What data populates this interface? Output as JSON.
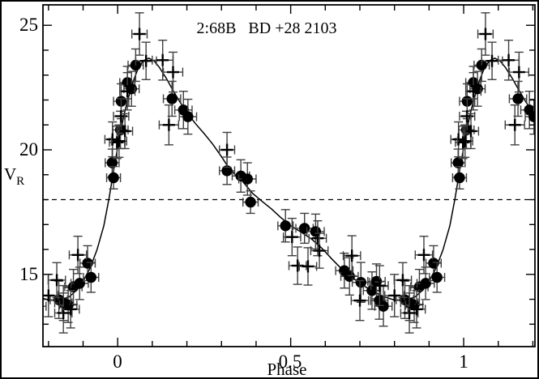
{
  "figure": {
    "title": "2:68B   BD +28 2103",
    "xlabel": "Phase",
    "ylabel_main": "V",
    "ylabel_sub": "R"
  },
  "colors": {
    "ink": "#000000",
    "errorbar": "#3f3f3f",
    "background": "#ffffff",
    "frame": "#000000"
  },
  "chart_data": {
    "type": "scatter",
    "title": "2:68B   BD +28 2103",
    "xlabel": "Phase",
    "ylabel": "V_R",
    "xlim": [
      -0.216,
      1.206
    ],
    "ylim": [
      12.1,
      25.82
    ],
    "grid": false,
    "legend": "none",
    "x_major_ticks": [
      0,
      0.5,
      1
    ],
    "x_major_labels": [
      "0",
      "0.5",
      "1"
    ],
    "x_minor_from": -0.2,
    "x_minor_to": 1.2,
    "x_minor_step": 0.1,
    "y_major_ticks": [
      15,
      20,
      25
    ],
    "y_major_labels": [
      "15",
      "20",
      "25"
    ],
    "y_minor_from": 13,
    "y_minor_to": 25,
    "y_minor_step": 1,
    "dashed_line_y": 18.0,
    "phase_fold_shifts": [
      -1,
      0,
      1
    ],
    "series": [
      {
        "name": "filled-circle-observations",
        "marker": "circle",
        "point_format": [
          "phase",
          "V_R",
          "xerr",
          "yerr"
        ],
        "points": [
          [
            0.008,
            20.8,
            0.022,
            0.75
          ],
          [
            0.01,
            21.95,
            0.022,
            0.7
          ],
          [
            0.028,
            22.7,
            0.022,
            0.65
          ],
          [
            0.04,
            22.45,
            0.022,
            0.7
          ],
          [
            0.052,
            23.4,
            0.022,
            0.65
          ],
          [
            0.157,
            22.05,
            0.025,
            0.7
          ],
          [
            0.19,
            21.6,
            0.025,
            0.75
          ],
          [
            0.203,
            21.33,
            0.025,
            0.7
          ],
          [
            0.316,
            19.16,
            0.022,
            0.55
          ],
          [
            0.356,
            18.95,
            0.025,
            0.65
          ],
          [
            0.375,
            18.83,
            0.025,
            0.65
          ],
          [
            0.384,
            17.9,
            0.022,
            0.45
          ],
          [
            0.485,
            16.95,
            0.022,
            0.65
          ],
          [
            0.54,
            16.85,
            0.025,
            0.6
          ],
          [
            0.572,
            16.72,
            0.025,
            0.7
          ],
          [
            0.655,
            15.15,
            0.025,
            0.7
          ],
          [
            0.67,
            14.92,
            0.025,
            0.75
          ],
          [
            0.703,
            14.68,
            0.025,
            0.8
          ],
          [
            0.735,
            14.35,
            0.025,
            0.75
          ],
          [
            0.748,
            14.72,
            0.025,
            0.7
          ],
          [
            0.756,
            13.95,
            0.025,
            0.75
          ],
          [
            0.768,
            13.72,
            0.025,
            0.8
          ],
          [
            0.83,
            13.98,
            0.025,
            0.75
          ],
          [
            0.843,
            13.85,
            0.025,
            0.7
          ],
          [
            0.857,
            13.77,
            0.025,
            0.7
          ],
          [
            0.872,
            14.5,
            0.025,
            0.7
          ],
          [
            0.89,
            14.64,
            0.025,
            0.65
          ],
          [
            0.913,
            15.45,
            0.022,
            0.7
          ],
          [
            0.923,
            14.88,
            0.022,
            0.6
          ],
          [
            0.984,
            19.48,
            0.02,
            0.55
          ],
          [
            0.988,
            18.88,
            0.02,
            0.45
          ]
        ]
      },
      {
        "name": "plus-marker-observations",
        "marker": "plus",
        "point_format": [
          "phase",
          "V_R",
          "xerr",
          "yerr"
        ],
        "points": [
          [
            0.063,
            24.65,
            0.022,
            0.85
          ],
          [
            0.082,
            23.57,
            0.03,
            0.75
          ],
          [
            0.13,
            23.6,
            0.03,
            0.8
          ],
          [
            0.16,
            23.12,
            0.028,
            0.8
          ],
          [
            0.148,
            21.0,
            0.028,
            0.8
          ],
          [
            0.028,
            22.35,
            0.022,
            0.75
          ],
          [
            0.01,
            21.35,
            0.022,
            0.7
          ],
          [
            0.021,
            20.75,
            0.022,
            0.7
          ],
          [
            0.004,
            20.35,
            0.022,
            0.65
          ],
          [
            0.998,
            20.3,
            0.022,
            0.65
          ],
          [
            0.985,
            20.42,
            0.022,
            0.7
          ],
          [
            0.316,
            20.0,
            0.022,
            0.7
          ],
          [
            0.504,
            16.5,
            0.025,
            0.75
          ],
          [
            0.52,
            15.35,
            0.025,
            0.75
          ],
          [
            0.55,
            15.32,
            0.025,
            0.75
          ],
          [
            0.578,
            16.45,
            0.025,
            0.7
          ],
          [
            0.583,
            15.95,
            0.025,
            0.7
          ],
          [
            0.677,
            15.75,
            0.025,
            0.8
          ],
          [
            0.7,
            13.95,
            0.025,
            0.8
          ],
          [
            0.757,
            14.55,
            0.025,
            0.8
          ],
          [
            0.8,
            14.15,
            0.028,
            0.85
          ],
          [
            0.824,
            14.77,
            0.025,
            0.7
          ],
          [
            0.843,
            13.45,
            0.025,
            0.8
          ],
          [
            0.864,
            13.6,
            0.025,
            0.75
          ],
          [
            0.885,
            15.78,
            0.025,
            0.75
          ]
        ]
      },
      {
        "name": "model-curve",
        "marker": "none",
        "line": true,
        "point_format": [
          "phase",
          "V_R"
        ],
        "points": [
          [
            0.0,
            20.1
          ],
          [
            0.01,
            20.85
          ],
          [
            0.02,
            21.5
          ],
          [
            0.03,
            22.05
          ],
          [
            0.045,
            22.75
          ],
          [
            0.06,
            23.3
          ],
          [
            0.075,
            23.58
          ],
          [
            0.09,
            23.68
          ],
          [
            0.105,
            23.57
          ],
          [
            0.12,
            23.32
          ],
          [
            0.14,
            22.88
          ],
          [
            0.16,
            22.38
          ],
          [
            0.18,
            21.92
          ],
          [
            0.2,
            21.5
          ],
          [
            0.225,
            21.05
          ],
          [
            0.25,
            20.65
          ],
          [
            0.275,
            20.22
          ],
          [
            0.3,
            19.72
          ],
          [
            0.32,
            19.3
          ],
          [
            0.34,
            19.0
          ],
          [
            0.36,
            18.75
          ],
          [
            0.39,
            18.25
          ],
          [
            0.42,
            17.9
          ],
          [
            0.445,
            17.62
          ],
          [
            0.47,
            17.3
          ],
          [
            0.5,
            16.95
          ],
          [
            0.53,
            16.7
          ],
          [
            0.56,
            16.42
          ],
          [
            0.59,
            16.05
          ],
          [
            0.62,
            15.6
          ],
          [
            0.65,
            15.18
          ],
          [
            0.68,
            14.85
          ],
          [
            0.71,
            14.55
          ],
          [
            0.74,
            14.3
          ],
          [
            0.77,
            14.1
          ],
          [
            0.8,
            13.97
          ],
          [
            0.83,
            13.95
          ],
          [
            0.86,
            14.1
          ],
          [
            0.88,
            14.35
          ],
          [
            0.9,
            14.72
          ],
          [
            0.92,
            15.25
          ],
          [
            0.94,
            15.98
          ],
          [
            0.96,
            16.95
          ],
          [
            0.975,
            18.05
          ],
          [
            0.99,
            19.3
          ],
          [
            1.0,
            20.1
          ]
        ]
      }
    ]
  }
}
